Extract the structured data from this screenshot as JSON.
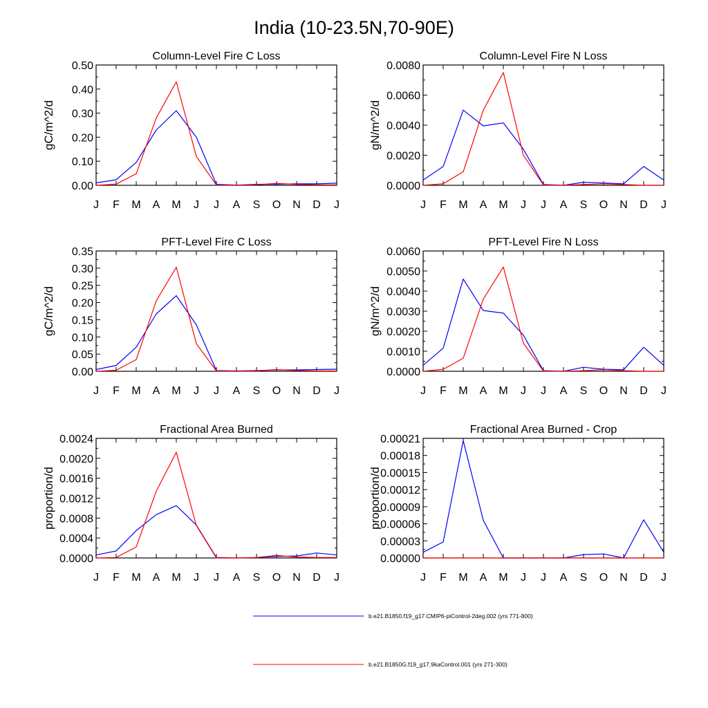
{
  "title": "India (10-23.5N,70-90E)",
  "legend": [
    {
      "label": "b.e21.B1850.f19_g17.CMIP6-piControl-2deg.002 (yrs 771-800)",
      "color": "#0000ff"
    },
    {
      "label": "b.e21.B1850G.f19_g17.9kaControl.001 (yrs 271-300)",
      "color": "#ff0000"
    }
  ],
  "chart_data": [
    {
      "type": "line",
      "title": "Column-Level Fire C Loss",
      "ylabel": "gC/m^2/d",
      "ylim": [
        0,
        0.5
      ],
      "yticks": [
        "0.00",
        "0.10",
        "0.20",
        "0.30",
        "0.40",
        "0.50"
      ],
      "categories": [
        "J",
        "F",
        "M",
        "A",
        "M",
        "J",
        "J",
        "A",
        "S",
        "O",
        "N",
        "D",
        "J"
      ],
      "series": [
        {
          "name": "b.e21.B1850.f19_g17.CMIP6-piControl-2deg.002 (yrs 771-800)",
          "color": "#0000ff",
          "values": [
            0.01,
            0.023,
            0.095,
            0.23,
            0.31,
            0.2,
            0.004,
            0.001,
            0.004,
            0.005,
            0.006,
            0.006,
            0.009
          ]
        },
        {
          "name": "b.e21.B1850G.f19_g17.9kaControl.001 (yrs 271-300)",
          "color": "#ff0000",
          "values": [
            0.0,
            0.005,
            0.048,
            0.28,
            0.43,
            0.12,
            0.001,
            0.0,
            0.002,
            0.008,
            0.004,
            0.002,
            0.002
          ]
        }
      ]
    },
    {
      "type": "line",
      "title": "Column-Level Fire N Loss",
      "ylabel": "gN/m^2/d",
      "ylim": [
        0,
        0.008
      ],
      "yticks": [
        "0.0000",
        "0.0020",
        "0.0040",
        "0.0060",
        "0.0080"
      ],
      "categories": [
        "J",
        "F",
        "M",
        "A",
        "M",
        "J",
        "J",
        "A",
        "S",
        "O",
        "N",
        "D",
        "J"
      ],
      "series": [
        {
          "name": "b.e21.B1850.f19_g17.CMIP6-piControl-2deg.002 (yrs 771-800)",
          "color": "#0000ff",
          "values": [
            0.00035,
            0.00125,
            0.005,
            0.00395,
            0.00415,
            0.0024,
            5e-05,
            0.0,
            0.0002,
            0.00015,
            0.0001,
            0.00125,
            0.00035
          ]
        },
        {
          "name": "b.e21.B1850G.f19_g17.9kaControl.001 (yrs 271-300)",
          "color": "#ff0000",
          "values": [
            0.0,
            0.0001,
            0.0009,
            0.005,
            0.0075,
            0.002,
            2e-05,
            0.0,
            5e-05,
            0.0001,
            5e-05,
            0.0,
            0.0
          ]
        }
      ]
    },
    {
      "type": "line",
      "title": "PFT-Level Fire C Loss",
      "ylabel": "gC/m^2/d",
      "ylim": [
        0,
        0.35
      ],
      "yticks": [
        "0.00",
        "0.05",
        "0.10",
        "0.15",
        "0.20",
        "0.25",
        "0.30",
        "0.35"
      ],
      "categories": [
        "J",
        "F",
        "M",
        "A",
        "M",
        "J",
        "J",
        "A",
        "S",
        "O",
        "N",
        "D",
        "J"
      ],
      "series": [
        {
          "name": "b.e21.B1850.f19_g17.CMIP6-piControl-2deg.002 (yrs 771-800)",
          "color": "#0000ff",
          "values": [
            0.005,
            0.017,
            0.07,
            0.167,
            0.22,
            0.135,
            0.002,
            0.001,
            0.002,
            0.004,
            0.004,
            0.005,
            0.006
          ]
        },
        {
          "name": "b.e21.B1850G.f19_g17.9kaControl.001 (yrs 271-300)",
          "color": "#ff0000",
          "values": [
            0.0,
            0.003,
            0.034,
            0.205,
            0.303,
            0.08,
            0.001,
            0.0,
            0.001,
            0.005,
            0.002,
            0.001,
            0.001
          ]
        }
      ]
    },
    {
      "type": "line",
      "title": "PFT-Level Fire N Loss",
      "ylabel": "gN/m^2/d",
      "ylim": [
        0,
        0.006
      ],
      "yticks": [
        "0.0000",
        "0.0010",
        "0.0020",
        "0.0030",
        "0.0040",
        "0.0050",
        "0.0060"
      ],
      "categories": [
        "J",
        "F",
        "M",
        "A",
        "M",
        "J",
        "J",
        "A",
        "S",
        "O",
        "N",
        "D",
        "J"
      ],
      "series": [
        {
          "name": "b.e21.B1850.f19_g17.CMIP6-piControl-2deg.002 (yrs 771-800)",
          "color": "#0000ff",
          "values": [
            0.0003,
            0.00115,
            0.0046,
            0.00303,
            0.0029,
            0.0018,
            3e-05,
            0.0,
            0.0002,
            0.0001,
            8e-05,
            0.0012,
            0.0003
          ]
        },
        {
          "name": "b.e21.B1850G.f19_g17.9kaControl.001 (yrs 271-300)",
          "color": "#ff0000",
          "values": [
            0.0,
            0.0001,
            0.00065,
            0.0036,
            0.0052,
            0.0014,
            1e-05,
            0.0,
            3e-05,
            8e-05,
            3e-05,
            0.0,
            0.0
          ]
        }
      ]
    },
    {
      "type": "line",
      "title": "Fractional Area Burned",
      "ylabel": "proportion/d",
      "ylim": [
        0,
        0.0024
      ],
      "yticks": [
        "0.0000",
        "0.0004",
        "0.0008",
        "0.0012",
        "0.0016",
        "0.0020",
        "0.0024"
      ],
      "categories": [
        "J",
        "F",
        "M",
        "A",
        "M",
        "J",
        "J",
        "A",
        "S",
        "O",
        "N",
        "D",
        "J"
      ],
      "series": [
        {
          "name": "b.e21.B1850.f19_g17.CMIP6-piControl-2deg.002 (yrs 771-800)",
          "color": "#0000ff",
          "values": [
            6e-05,
            0.00014,
            0.00055,
            0.00087,
            0.00105,
            0.00066,
            1e-05,
            0.0,
            1e-05,
            3e-05,
            4e-05,
            0.0001,
            6e-05
          ]
        },
        {
          "name": "b.e21.B1850G.f19_g17.9kaControl.001 (yrs 271-300)",
          "color": "#ff0000",
          "values": [
            0.0,
            1e-05,
            0.00022,
            0.00134,
            0.00212,
            0.00065,
            0.0,
            0.0,
            1e-05,
            5e-05,
            2e-05,
            1e-05,
            1e-05
          ]
        }
      ]
    },
    {
      "type": "line",
      "title": "Fractional Area Burned - Crop",
      "ylabel": "proportion/d",
      "ylim": [
        0,
        0.00021
      ],
      "yticks": [
        "0.00000",
        "0.00003",
        "0.00006",
        "0.00009",
        "0.00012",
        "0.00015",
        "0.00018",
        "0.00021"
      ],
      "categories": [
        "J",
        "F",
        "M",
        "A",
        "M",
        "J",
        "J",
        "A",
        "S",
        "O",
        "N",
        "D",
        "J"
      ],
      "series": [
        {
          "name": "b.e21.B1850.f19_g17.CMIP6-piControl-2deg.002 (yrs 771-800)",
          "color": "#0000ff",
          "values": [
            1e-05,
            2.8e-05,
            0.000206,
            6.6e-05,
            0.0,
            0.0,
            0.0,
            0.0,
            6e-06,
            7e-06,
            0.0,
            6.7e-05,
            1e-05
          ]
        },
        {
          "name": "b.e21.B1850G.f19_g17.9kaControl.001 (yrs 271-300)",
          "color": "#ff0000",
          "values": [
            0.0,
            0.0,
            0.0,
            0.0,
            0.0,
            0.0,
            0.0,
            0.0,
            0.0,
            0.0,
            0.0,
            0.0,
            0.0
          ]
        }
      ]
    }
  ]
}
